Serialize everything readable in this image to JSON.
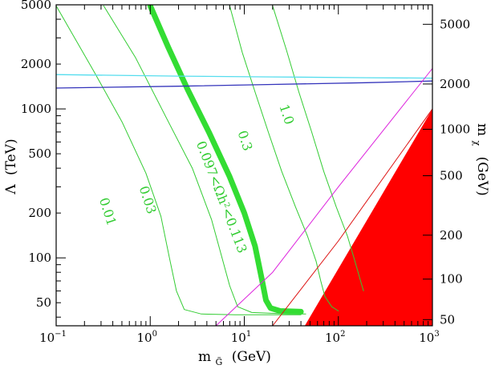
{
  "chart_data": {
    "type": "line",
    "title": "",
    "xlabel": {
      "main": "m",
      "sub": "G̃",
      "unit": "(GeV)"
    },
    "ylabel": {
      "symbol": "Λ",
      "unit": "(TeV)"
    },
    "y2label": {
      "main": "m",
      "sub": "χ",
      "unit": "(GeV)"
    },
    "xscale": "log",
    "yscale": "log",
    "xlim": [
      0.1,
      1000
    ],
    "ylim": [
      35,
      5000
    ],
    "x_ticks": [
      {
        "value": 0.1,
        "base": "10",
        "exp": "−1"
      },
      {
        "value": 1,
        "base": "10",
        "exp": "0"
      },
      {
        "value": 10,
        "base": "10",
        "exp": "1"
      },
      {
        "value": 100,
        "base": "10",
        "exp": "2"
      },
      {
        "value": 1000,
        "base": "10",
        "exp": "3"
      }
    ],
    "y_ticks": [
      {
        "value": 50,
        "label": "50"
      },
      {
        "value": 100,
        "label": "100"
      },
      {
        "value": 200,
        "label": "200"
      },
      {
        "value": 500,
        "label": "500"
      },
      {
        "value": 1000,
        "label": "1000"
      },
      {
        "value": 2000,
        "label": "2000"
      },
      {
        "value": 5000,
        "label": "5000"
      }
    ],
    "y2_ticks": [
      {
        "label": "50",
        "at_lambda": 38.5
      },
      {
        "label": "100",
        "at_lambda": 72
      },
      {
        "label": "200",
        "at_lambda": 142
      },
      {
        "label": "500",
        "at_lambda": 356
      },
      {
        "label": "1000",
        "at_lambda": 730
      },
      {
        "label": "2000",
        "at_lambda": 1470
      },
      {
        "label": "5000",
        "at_lambda": 3700
      }
    ],
    "series": [
      {
        "label": "0.01",
        "color": "#33cc33",
        "width": 1,
        "points": [
          [
            0.1,
            4920
          ],
          [
            0.25,
            1800
          ],
          [
            0.5,
            820
          ],
          [
            0.9,
            370
          ],
          [
            1.3,
            190
          ],
          [
            1.6,
            100
          ],
          [
            1.9,
            60
          ],
          [
            2.3,
            45
          ],
          [
            3.5,
            42
          ],
          [
            8,
            41.5
          ],
          [
            40,
            41.5
          ]
        ]
      },
      {
        "label": "0.03",
        "color": "#33cc33",
        "width": 1,
        "points": [
          [
            0.32,
            4920
          ],
          [
            0.7,
            2200
          ],
          [
            1.5,
            860
          ],
          [
            2.8,
            400
          ],
          [
            4.5,
            180
          ],
          [
            5.8,
            100
          ],
          [
            7,
            65
          ],
          [
            8.5,
            47
          ],
          [
            12,
            43
          ],
          [
            30,
            42
          ],
          [
            45,
            42
          ]
        ]
      },
      {
        "label": "0.097<Ωh²<0.113",
        "color": "#33dd33",
        "width": 7,
        "points": [
          [
            1,
            4920
          ],
          [
            1.55,
            2600
          ],
          [
            2.5,
            1350
          ],
          [
            4.2,
            700
          ],
          [
            7,
            350
          ],
          [
            10,
            200
          ],
          [
            13,
            120
          ],
          [
            15.5,
            70
          ],
          [
            17,
            52
          ],
          [
            19,
            46
          ],
          [
            24,
            44
          ],
          [
            40,
            43.5
          ]
        ]
      },
      {
        "label": "0.3",
        "color": "#33cc33",
        "width": 1,
        "points": [
          [
            7,
            4920
          ],
          [
            9.5,
            2400
          ],
          [
            13,
            1300
          ],
          [
            18,
            700
          ],
          [
            25,
            380
          ],
          [
            35,
            220
          ],
          [
            47,
            140
          ],
          [
            58,
            95
          ],
          [
            65,
            70
          ],
          [
            72,
            55
          ],
          [
            85,
            47
          ],
          [
            100,
            44
          ]
        ]
      },
      {
        "label": "1.0",
        "color": "#33cc33",
        "width": 1,
        "points": [
          [
            20,
            4920
          ],
          [
            28,
            2500
          ],
          [
            38,
            1300
          ],
          [
            52,
            700
          ],
          [
            70,
            380
          ],
          [
            95,
            220
          ],
          [
            125,
            140
          ],
          [
            150,
            95
          ],
          [
            170,
            72
          ],
          [
            185,
            60
          ]
        ]
      },
      {
        "label": "",
        "color": "#55ddee",
        "width": 1.3,
        "points": [
          [
            0.1,
            1700
          ],
          [
            2,
            1660
          ],
          [
            20,
            1640
          ],
          [
            200,
            1620
          ],
          [
            1000,
            1610
          ]
        ]
      },
      {
        "label": "",
        "color": "#3333bb",
        "width": 1.3,
        "points": [
          [
            0.1,
            1380
          ],
          [
            2,
            1420
          ],
          [
            20,
            1460
          ],
          [
            200,
            1500
          ],
          [
            1000,
            1540
          ]
        ]
      },
      {
        "label": "",
        "color": "#dd22dd",
        "width": 1,
        "points": [
          [
            5,
            35
          ],
          [
            20,
            80
          ],
          [
            100,
            300
          ],
          [
            1000,
            1870
          ]
        ]
      },
      {
        "label": "",
        "color": "#dd1111",
        "width": 1,
        "points": [
          [
            20,
            35
          ],
          [
            100,
            130
          ],
          [
            1000,
            1000
          ]
        ]
      }
    ],
    "excluded_region": {
      "color": "#ff0000",
      "points": [
        [
          44,
          35
        ],
        [
          1000,
          1000
        ],
        [
          1000,
          35
        ]
      ]
    }
  }
}
